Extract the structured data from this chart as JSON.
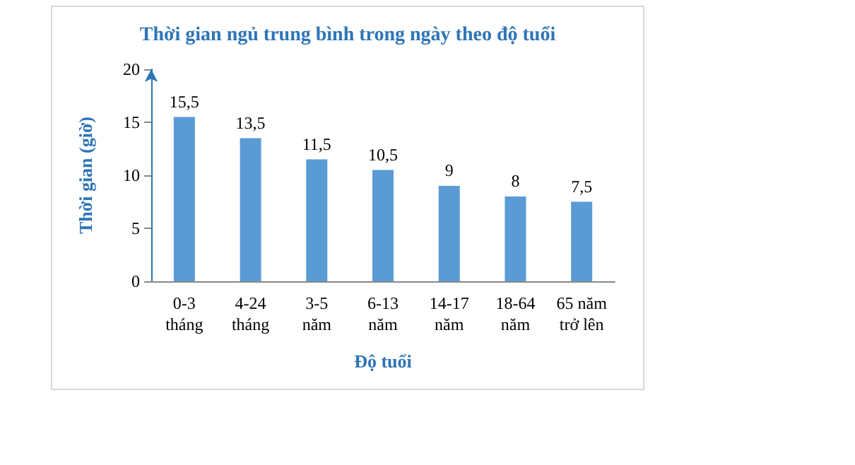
{
  "chart_data": {
    "type": "bar",
    "title": "Thời gian ngủ trung bình trong ngày theo độ tuổi",
    "xlabel": "Độ tuổi",
    "ylabel": "Thời gian (giờ)",
    "categories": [
      "0-3\ntháng",
      "4-24\ntháng",
      "3-5\nnăm",
      "6-13\nnăm",
      "14-17\nnăm",
      "18-64\nnăm",
      "65 năm\ntrở lên"
    ],
    "values": [
      15.5,
      13.5,
      11.5,
      10.5,
      9,
      8,
      7.5
    ],
    "value_labels": [
      "15,5",
      "13,5",
      "11,5",
      "10,5",
      "9",
      "8",
      "7,5"
    ],
    "color": "#5b9bd5",
    "ylim": [
      0,
      20
    ],
    "yticks": [
      0,
      5,
      10,
      15,
      20
    ],
    "grid": false
  }
}
